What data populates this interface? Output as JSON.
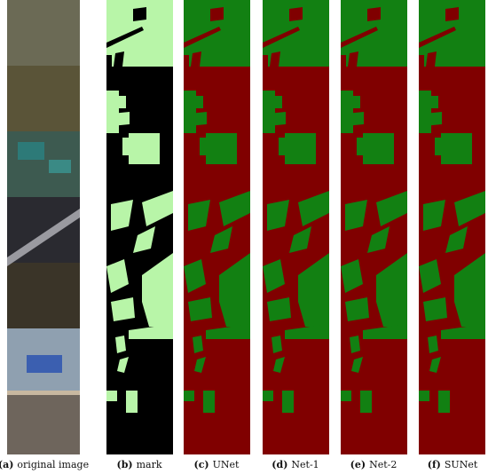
{
  "captions": [
    {
      "label": "(a)",
      "text": "original image"
    },
    {
      "label": "(b)",
      "text": "mark"
    },
    {
      "label": "(c)",
      "text": "UNet"
    },
    {
      "label": "(d)",
      "text": "Net-1"
    },
    {
      "label": "(e)",
      "text": "Net-2"
    },
    {
      "label": "(f)",
      "text": "SUNet"
    }
  ]
}
